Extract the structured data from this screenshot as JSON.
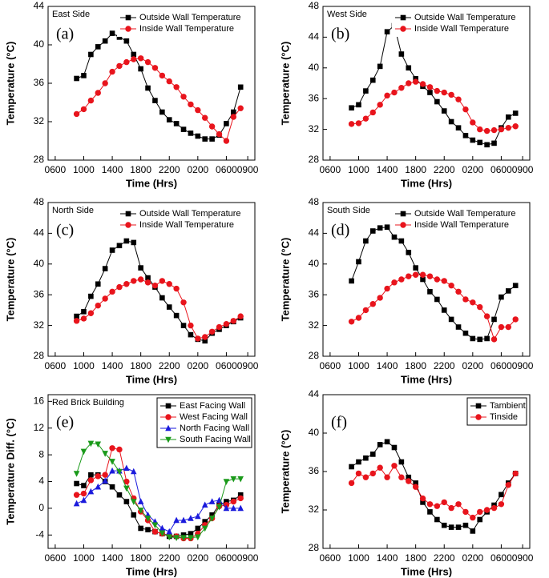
{
  "chart_data": [
    {
      "type": "line",
      "label": "(a)",
      "title": "East Side",
      "xlabel": "Time (Hrs)",
      "ylabel": "Temperature (°C)",
      "legend": "upper right",
      "x": [
        9,
        10,
        11,
        12,
        13,
        14,
        15,
        16,
        17,
        18,
        19,
        20,
        21,
        22,
        23,
        24,
        25,
        26,
        27,
        28,
        29,
        30,
        31,
        32
      ],
      "xlim": [
        5,
        34
      ],
      "xticks": [
        {
          "value": 6,
          "label": "0600"
        },
        {
          "value": 10,
          "label": "1000"
        },
        {
          "value": 14,
          "label": "1400"
        },
        {
          "value": 18,
          "label": "1800"
        },
        {
          "value": 22,
          "label": "2200"
        },
        {
          "value": 26,
          "label": "0200"
        },
        {
          "value": 30,
          "label": "0600"
        },
        {
          "value": 33,
          "label": "0900"
        }
      ],
      "ylim": [
        28,
        44
      ],
      "yticks": [
        28,
        32,
        36,
        40,
        44
      ],
      "series": [
        {
          "name": "Outside Wall Temperature",
          "color": "#000000",
          "marker": "square",
          "values": [
            36.5,
            36.8,
            39,
            39.8,
            40.4,
            41.2,
            40.8,
            40.4,
            39,
            37.5,
            35.5,
            34.2,
            33,
            32.2,
            31.8,
            31.2,
            30.8,
            30.5,
            30.2,
            30.2,
            30.6,
            31.8,
            33,
            35.6
          ]
        },
        {
          "name": "Inside Wall Temperature",
          "color": "#e8141c",
          "marker": "circle",
          "values": [
            32.8,
            33.3,
            34.2,
            35,
            36,
            37.2,
            37.8,
            38.2,
            38.5,
            38.6,
            38.2,
            37.6,
            36.8,
            36.2,
            35.6,
            34.6,
            33.8,
            33.2,
            32.4,
            31.5,
            30.7,
            30,
            32.5,
            33.4
          ]
        }
      ]
    },
    {
      "type": "line",
      "label": "(b)",
      "title": "West Side",
      "xlabel": "Time (Hrs)",
      "ylabel": "Temperature (°C)",
      "legend": "upper right",
      "x": [
        9,
        10,
        11,
        12,
        13,
        14,
        15,
        16,
        17,
        18,
        19,
        20,
        21,
        22,
        23,
        24,
        25,
        26,
        27,
        28,
        29,
        30,
        31,
        32
      ],
      "xlim": [
        5,
        34
      ],
      "xticks": [
        {
          "value": 6,
          "label": "0600"
        },
        {
          "value": 10,
          "label": "1000"
        },
        {
          "value": 14,
          "label": "1400"
        },
        {
          "value": 18,
          "label": "1800"
        },
        {
          "value": 22,
          "label": "2200"
        },
        {
          "value": 26,
          "label": "0200"
        },
        {
          "value": 30,
          "label": "0600"
        },
        {
          "value": 33,
          "label": "0900"
        }
      ],
      "ylim": [
        28,
        48
      ],
      "yticks": [
        28,
        32,
        36,
        40,
        44,
        48
      ],
      "series": [
        {
          "name": "Outside Wall Temperature",
          "color": "#000000",
          "marker": "square",
          "values": [
            34.8,
            35.2,
            37,
            38.4,
            40.2,
            44.7,
            45.5,
            41.8,
            40,
            38.6,
            37.6,
            36.8,
            35.6,
            34.4,
            33,
            32.2,
            31.2,
            30.6,
            30.3,
            30,
            30.2,
            32.2,
            33.6,
            34.1
          ]
        },
        {
          "name": "Inside Wall Temperature",
          "color": "#e8141c",
          "marker": "circle",
          "values": [
            32.7,
            32.8,
            33.4,
            34.2,
            35.2,
            36.4,
            36.8,
            37.4,
            38,
            38.2,
            37.9,
            37.5,
            37,
            36.8,
            36.5,
            35.9,
            34.6,
            32.9,
            32,
            31.8,
            31.9,
            32,
            32.2,
            32.4
          ]
        }
      ]
    },
    {
      "type": "line",
      "label": "(c)",
      "title": "North Side",
      "xlabel": "Time (Hrs)",
      "ylabel": "Temperature (°C)",
      "legend": "upper right",
      "x": [
        9,
        10,
        11,
        12,
        13,
        14,
        15,
        16,
        17,
        18,
        19,
        20,
        21,
        22,
        23,
        24,
        25,
        26,
        27,
        28,
        29,
        30,
        31,
        32
      ],
      "xlim": [
        5,
        34
      ],
      "xticks": [
        {
          "value": 6,
          "label": "0600"
        },
        {
          "value": 10,
          "label": "1000"
        },
        {
          "value": 14,
          "label": "1400"
        },
        {
          "value": 18,
          "label": "1800"
        },
        {
          "value": 22,
          "label": "2200"
        },
        {
          "value": 26,
          "label": "0200"
        },
        {
          "value": 30,
          "label": "0600"
        },
        {
          "value": 33,
          "label": "0900"
        }
      ],
      "ylim": [
        28,
        48
      ],
      "yticks": [
        28,
        32,
        36,
        40,
        44,
        48
      ],
      "series": [
        {
          "name": "Outside Wall Temperature",
          "color": "#000000",
          "marker": "square",
          "values": [
            33.2,
            33.8,
            35.8,
            37.4,
            39.4,
            41.8,
            42.4,
            43,
            42.8,
            39.5,
            38.2,
            37,
            35.6,
            34.4,
            33.3,
            32,
            30.8,
            30.2,
            30,
            31,
            31.5,
            32,
            32.5,
            33
          ]
        },
        {
          "name": "Inside Wall Temperature",
          "color": "#e8141c",
          "marker": "circle",
          "values": [
            32.6,
            32.9,
            33.6,
            34.6,
            35.5,
            36.4,
            37,
            37.4,
            37.8,
            38,
            37.6,
            37.2,
            37.8,
            37.4,
            36.8,
            35,
            32,
            30.3,
            30.5,
            31.2,
            31.8,
            32.2,
            32.6,
            33.2
          ]
        }
      ]
    },
    {
      "type": "line",
      "label": "(d)",
      "title": "South Side",
      "xlabel": "Time (Hrs)",
      "ylabel": "Temperature (°C)",
      "legend": "upper right",
      "x": [
        9,
        10,
        11,
        12,
        13,
        14,
        15,
        16,
        17,
        18,
        19,
        20,
        21,
        22,
        23,
        24,
        25,
        26,
        27,
        28,
        29,
        30,
        31,
        32
      ],
      "xlim": [
        5,
        34
      ],
      "xticks": [
        {
          "value": 6,
          "label": "0600"
        },
        {
          "value": 10,
          "label": "1000"
        },
        {
          "value": 14,
          "label": "1400"
        },
        {
          "value": 18,
          "label": "1800"
        },
        {
          "value": 22,
          "label": "2200"
        },
        {
          "value": 26,
          "label": "0200"
        },
        {
          "value": 30,
          "label": "0600"
        },
        {
          "value": 33,
          "label": "0900"
        }
      ],
      "ylim": [
        28,
        48
      ],
      "yticks": [
        28,
        32,
        36,
        40,
        44,
        48
      ],
      "series": [
        {
          "name": "Outside Wall Temperature",
          "color": "#000000",
          "marker": "square",
          "values": [
            37.8,
            40.3,
            43,
            44.3,
            44.7,
            44.8,
            43.5,
            43,
            41.5,
            39.5,
            38,
            36.4,
            35.4,
            34,
            32.8,
            31.8,
            31,
            30.3,
            30.2,
            30.3,
            32.8,
            35.7,
            36.5,
            37.2
          ]
        },
        {
          "name": "Inside Wall Temperature",
          "color": "#e8141c",
          "marker": "circle",
          "values": [
            32.5,
            33,
            34,
            34.8,
            35.6,
            36.8,
            37.6,
            38,
            38.4,
            38.6,
            38.6,
            38.4,
            38,
            37.8,
            37.2,
            36.4,
            35.4,
            35,
            34.4,
            33.2,
            30.2,
            31.8,
            31.8,
            32.8
          ]
        }
      ]
    },
    {
      "type": "line",
      "label": "(e)",
      "title": "Red Brick Building",
      "xlabel": "Time (Hrs)",
      "ylabel": "Temperature Diff. (°C)",
      "legend": "upper right",
      "x": [
        9,
        10,
        11,
        12,
        13,
        14,
        15,
        16,
        17,
        18,
        19,
        20,
        21,
        22,
        23,
        24,
        25,
        26,
        27,
        28,
        29,
        30,
        31,
        32
      ],
      "xlim": [
        5,
        34
      ],
      "xticks": [
        {
          "value": 6,
          "label": "0600"
        },
        {
          "value": 10,
          "label": "1000"
        },
        {
          "value": 14,
          "label": "1400"
        },
        {
          "value": 18,
          "label": "1800"
        },
        {
          "value": 22,
          "label": "2200"
        },
        {
          "value": 26,
          "label": "0200"
        },
        {
          "value": 30,
          "label": "0600"
        },
        {
          "value": 33,
          "label": "0900"
        }
      ],
      "ylim": [
        -6,
        17
      ],
      "yticks": [
        -4,
        0,
        4,
        8,
        12,
        16
      ],
      "series": [
        {
          "name": "East Facing Wall",
          "color": "#000000",
          "marker": "square",
          "values": [
            3.7,
            3.4,
            5,
            5,
            4,
            3.2,
            2,
            1,
            -1,
            -3,
            -3.2,
            -3.5,
            -3.8,
            -4.2,
            -4.2,
            -4,
            -3.8,
            -3,
            -2,
            -1,
            0.5,
            1,
            1.2,
            2
          ]
        },
        {
          "name": "West Facing Wall",
          "color": "#e8141c",
          "marker": "circle",
          "values": [
            2,
            2.2,
            4.2,
            4.8,
            5,
            9,
            8.8,
            4,
            1.5,
            -0.5,
            -1.8,
            -3.5,
            -3.8,
            -4,
            -4.2,
            -4.5,
            -4.5,
            -3.8,
            -2.5,
            -1.5,
            0.3,
            0.5,
            1,
            1.5
          ]
        },
        {
          "name": "North Facing Wall",
          "color": "#1a1adc",
          "marker": "triangle-up",
          "values": [
            0.7,
            1.2,
            2.5,
            3.2,
            4.1,
            5.6,
            5.6,
            6,
            5.5,
            1,
            -1,
            -2,
            -3,
            -3.5,
            -1.8,
            -1.8,
            -1.5,
            -1.2,
            0.5,
            1,
            1.2,
            0,
            0,
            0
          ]
        },
        {
          "name": "South Facing Wall",
          "color": "#1a9a1a",
          "marker": "triangle-down",
          "values": [
            5.2,
            8.5,
            9.7,
            9.6,
            8.2,
            7,
            5.5,
            3,
            1,
            -0.3,
            -1.5,
            -2.5,
            -3.7,
            -4.3,
            -4.4,
            -4.4,
            -4.4,
            -4.3,
            -3,
            -1.5,
            0.2,
            4,
            4.4,
            4.4
          ]
        }
      ]
    },
    {
      "type": "line",
      "label": "(f)",
      "xlabel": "Time (Hrs)",
      "ylabel": "Temperature (°C)",
      "legend": "upper right",
      "x": [
        9,
        10,
        11,
        12,
        13,
        14,
        15,
        16,
        17,
        18,
        19,
        20,
        21,
        22,
        23,
        24,
        25,
        26,
        27,
        28,
        29,
        30,
        31,
        32
      ],
      "xlim": [
        5,
        34
      ],
      "xticks": [
        {
          "value": 6,
          "label": "0600"
        },
        {
          "value": 10,
          "label": "1000"
        },
        {
          "value": 14,
          "label": "1400"
        },
        {
          "value": 18,
          "label": "1800"
        },
        {
          "value": 22,
          "label": "2200"
        },
        {
          "value": 26,
          "label": "0200"
        },
        {
          "value": 30,
          "label": "0600"
        },
        {
          "value": 33,
          "label": "0900"
        }
      ],
      "ylim": [
        28,
        44
      ],
      "yticks": [
        28,
        32,
        36,
        40,
        44
      ],
      "series": [
        {
          "name": "Tambient",
          "color": "#000000",
          "marker": "square",
          "values": [
            36.5,
            37,
            37.4,
            37.8,
            38.8,
            39.1,
            38.5,
            37,
            35.4,
            34.8,
            32.8,
            31.8,
            31,
            30.4,
            30.2,
            30.2,
            30.4,
            29.8,
            31,
            31.8,
            32.5,
            33.6,
            34.8,
            35.8
          ]
        },
        {
          "name": "Tinside",
          "color": "#e8141c",
          "marker": "circle",
          "values": [
            34.8,
            35.8,
            35.4,
            35.8,
            36.4,
            35.4,
            36.6,
            35.4,
            35,
            34.4,
            33.2,
            32.6,
            32.4,
            32.8,
            32.2,
            32.6,
            31.8,
            31.2,
            31.8,
            32,
            32.2,
            32.6,
            34.6,
            35.8
          ]
        }
      ]
    }
  ]
}
